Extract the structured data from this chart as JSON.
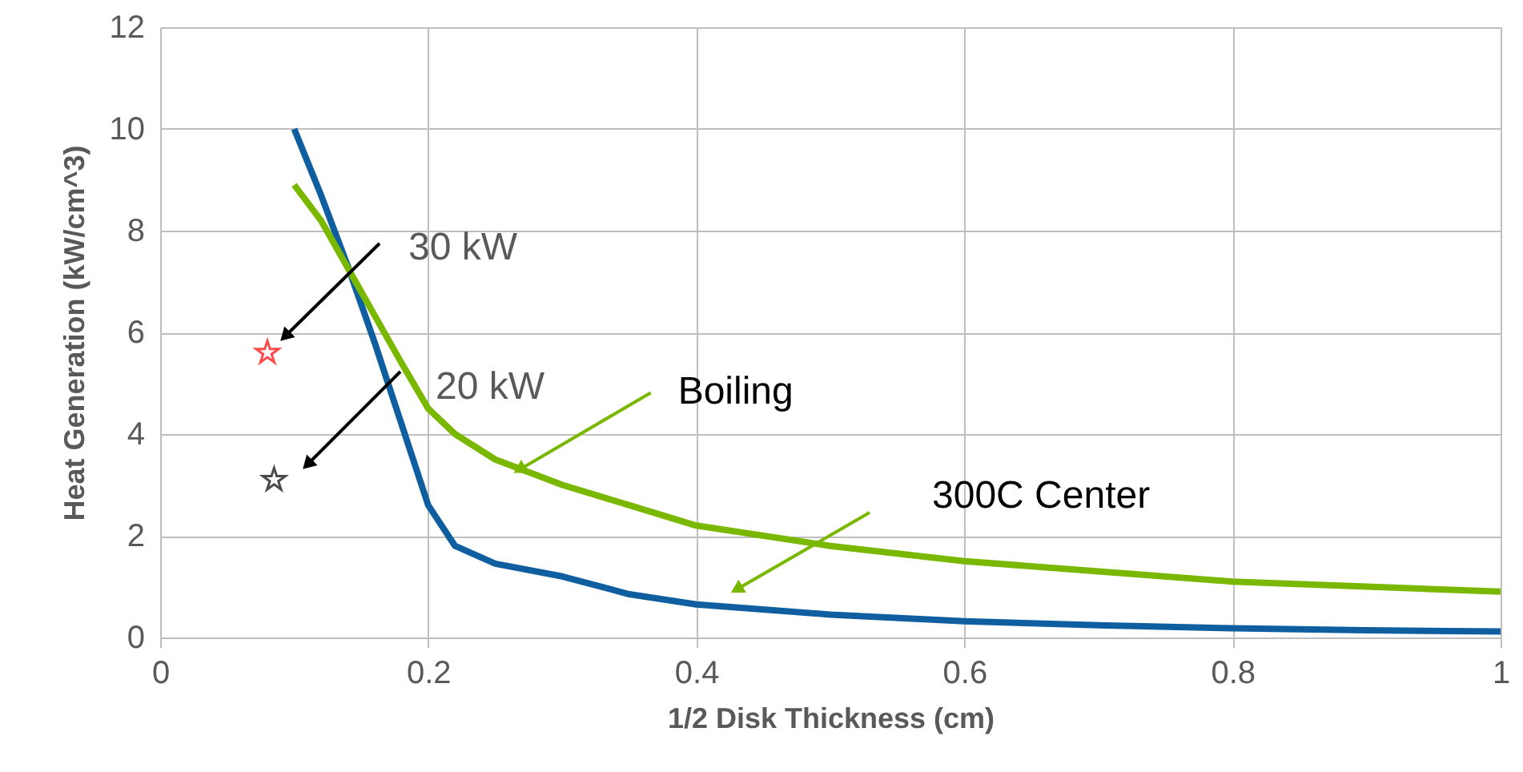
{
  "chart_data": {
    "type": "line",
    "xlabel": "1/2 Disk Thickness (cm)",
    "ylabel": "Heat Generation (kW/cm^3)",
    "xlim": [
      0,
      1
    ],
    "xticks": [
      0,
      0.2,
      0.4,
      0.6,
      0.8,
      1
    ],
    "ylim": [
      0,
      12
    ],
    "yticks": [
      0,
      2,
      4,
      6,
      8,
      10,
      12
    ],
    "grid": true,
    "marker": "none",
    "line_style": "solid",
    "series": [
      {
        "color": "#0f5fa0",
        "x": [
          0.1,
          0.12,
          0.14,
          0.16,
          0.18,
          0.2,
          0.22,
          0.25,
          0.3,
          0.35,
          0.4,
          0.5,
          0.6,
          0.7,
          0.8,
          0.9,
          1
        ],
        "values": [
          10,
          8.7,
          7.3,
          5.8,
          4.2,
          2.6,
          1.8,
          1.45,
          1.2,
          0.85,
          0.65,
          0.45,
          0.32,
          0.24,
          0.18,
          0.14,
          0.12
        ]
      },
      {
        "color": "#7ab800",
        "x": [
          0.1,
          0.12,
          0.15,
          0.18,
          0.2,
          0.22,
          0.25,
          0.3,
          0.35,
          0.4,
          0.5,
          0.6,
          0.7,
          0.8,
          0.9,
          1
        ],
        "values": [
          8.9,
          8.2,
          6.8,
          5.4,
          4.5,
          4.0,
          3.5,
          3.0,
          2.6,
          2.2,
          1.8,
          1.5,
          1.3,
          1.1,
          1.0,
          0.9
        ]
      },
      {
        "type": "scatter",
        "marker": "star",
        "color": "#ff0000",
        "x": [
          0.08
        ],
        "values": [
          5.6
        ]
      },
      {
        "type": "scatter",
        "marker": "star",
        "color": "#000000",
        "x": [
          0.085
        ],
        "values": [
          3.1
        ]
      }
    ],
    "annotations": [
      "30 kW",
      "20 kW",
      {
        "text": "Boiling",
        "x": 0.268,
        "y": 3.3
      },
      "300C Center"
    ]
  }
}
